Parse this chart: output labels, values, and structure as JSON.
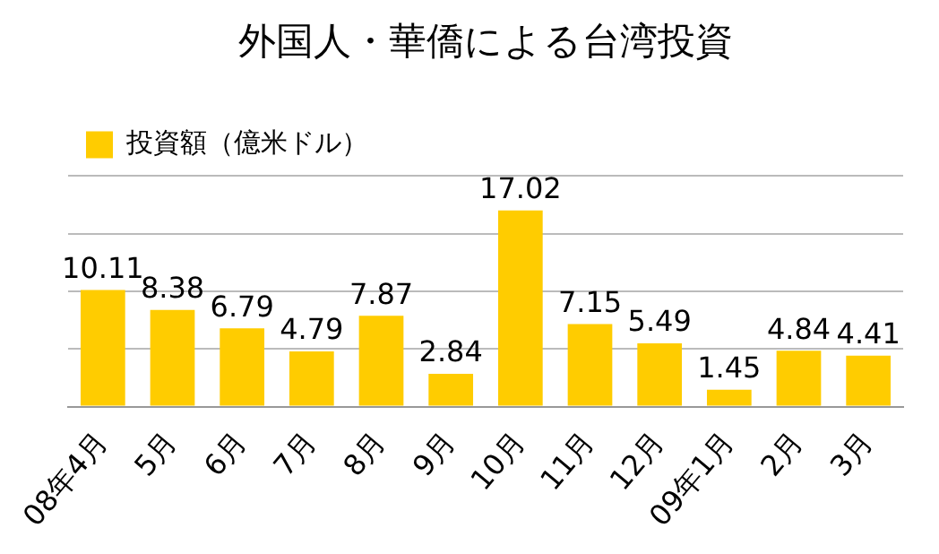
{
  "chart_data": {
    "type": "bar",
    "title": "外国人・華僑による台湾投資",
    "categories": [
      "08年4月",
      "5月",
      "6月",
      "7月",
      "8月",
      "9月",
      "10月",
      "11月",
      "12月",
      "09年1月",
      "2月",
      "3月"
    ],
    "series": [
      {
        "name": "投資額（億米ドル）",
        "color": "#ffcc00",
        "values": [
          10.11,
          8.38,
          6.79,
          4.79,
          7.87,
          2.84,
          17.02,
          7.15,
          5.49,
          1.45,
          4.84,
          4.41
        ]
      }
    ],
    "ylim": [
      0,
      20
    ],
    "yticks": [
      {
        "value": 0,
        "label": null
      },
      {
        "value": 5,
        "label": null
      },
      {
        "value": 10,
        "label": null
      },
      {
        "value": 15,
        "label": null
      },
      {
        "value": 20,
        "label": null
      }
    ],
    "grid": "y",
    "tick_labels": "x",
    "legend": "top left",
    "data_labels": true
  }
}
